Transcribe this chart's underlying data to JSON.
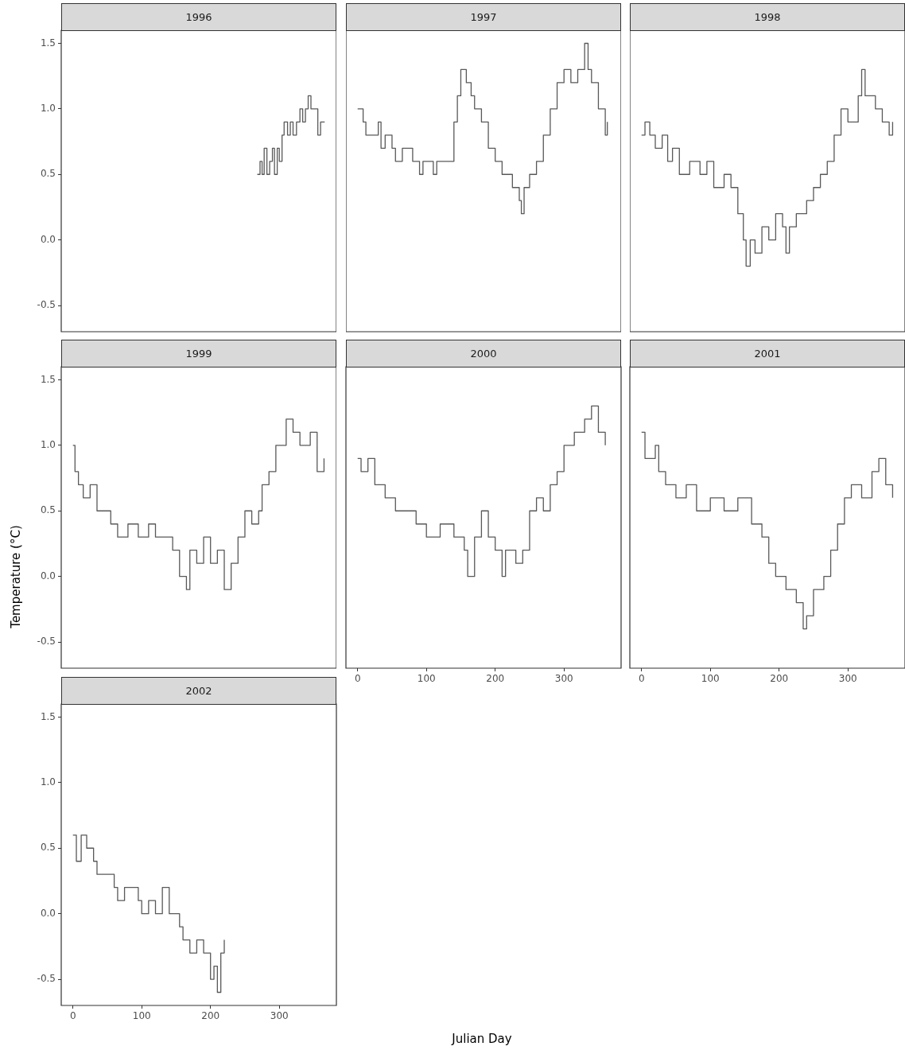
{
  "chart_data": [
    {
      "type": "step",
      "title": "1996",
      "color": "#595959",
      "tick_labels": "y",
      "xlim": [
        -17,
        383
      ],
      "ylim": [
        -0.7,
        1.6
      ],
      "yticks": [
        {
          "value": -0.5,
          "label": "-0.5"
        },
        {
          "value": 0,
          "label": "0.0"
        },
        {
          "value": 0.5,
          "label": "0.5"
        },
        {
          "value": 1,
          "label": "1.0"
        },
        {
          "value": 1.5,
          "label": "1.5"
        }
      ],
      "x": [
        268,
        272,
        275,
        278,
        282,
        286,
        290,
        293,
        297,
        300,
        304,
        307,
        312,
        316,
        320,
        325,
        330,
        334,
        338,
        342,
        346,
        352,
        356,
        360,
        366
      ],
      "values": [
        0.5,
        0.6,
        0.5,
        0.7,
        0.5,
        0.6,
        0.7,
        0.5,
        0.7,
        0.6,
        0.8,
        0.9,
        0.8,
        0.9,
        0.8,
        0.9,
        1.0,
        0.9,
        1.0,
        1.1,
        1.0,
        1.0,
        0.8,
        0.9,
        0.9
      ]
    },
    {
      "type": "step",
      "title": "1997",
      "color": "#595959",
      "tick_labels": false,
      "xlim": [
        -17,
        383
      ],
      "ylim": [
        -0.7,
        1.6
      ],
      "x": [
        0,
        8,
        12,
        30,
        34,
        40,
        50,
        55,
        65,
        75,
        80,
        90,
        95,
        110,
        115,
        125,
        140,
        145,
        150,
        158,
        165,
        170,
        180,
        190,
        200,
        210,
        225,
        235,
        238,
        242,
        250,
        260,
        270,
        280,
        290,
        300,
        310,
        320,
        330,
        335,
        340,
        350,
        360,
        363
      ],
      "values": [
        1.0,
        0.9,
        0.8,
        0.9,
        0.7,
        0.8,
        0.7,
        0.6,
        0.7,
        0.7,
        0.6,
        0.5,
        0.6,
        0.5,
        0.6,
        0.6,
        0.9,
        1.1,
        1.3,
        1.2,
        1.1,
        1.0,
        0.9,
        0.7,
        0.6,
        0.5,
        0.4,
        0.3,
        0.2,
        0.4,
        0.5,
        0.6,
        0.8,
        1.0,
        1.2,
        1.3,
        1.2,
        1.3,
        1.5,
        1.3,
        1.2,
        1.0,
        0.8,
        0.9
      ]
    },
    {
      "type": "step",
      "title": "1998",
      "color": "#595959",
      "tick_labels": false,
      "xlim": [
        -17,
        383
      ],
      "ylim": [
        -0.7,
        1.6
      ],
      "x": [
        0,
        5,
        12,
        20,
        30,
        38,
        45,
        55,
        70,
        85,
        95,
        105,
        120,
        130,
        140,
        148,
        152,
        158,
        165,
        175,
        185,
        195,
        205,
        210,
        215,
        225,
        240,
        250,
        260,
        270,
        280,
        290,
        300,
        315,
        320,
        325,
        340,
        350,
        360,
        365
      ],
      "values": [
        0.8,
        0.9,
        0.8,
        0.7,
        0.8,
        0.6,
        0.7,
        0.5,
        0.6,
        0.5,
        0.6,
        0.4,
        0.5,
        0.4,
        0.2,
        0.0,
        -0.2,
        0.0,
        -0.1,
        0.1,
        0.0,
        0.2,
        0.1,
        -0.1,
        0.1,
        0.2,
        0.3,
        0.4,
        0.5,
        0.6,
        0.8,
        1.0,
        0.9,
        1.1,
        1.3,
        1.1,
        1.0,
        0.9,
        0.8,
        0.9
      ]
    },
    {
      "type": "step",
      "title": "1999",
      "ylabel": "Temperature (°C)",
      "color": "#595959",
      "tick_labels": "y",
      "xlim": [
        -17,
        383
      ],
      "ylim": [
        -0.7,
        1.6
      ],
      "yticks": [
        {
          "value": -0.5,
          "label": "-0.5"
        },
        {
          "value": 0,
          "label": "0.0"
        },
        {
          "value": 0.5,
          "label": "0.5"
        },
        {
          "value": 1,
          "label": "1.0"
        },
        {
          "value": 1.5,
          "label": "1.5"
        }
      ],
      "x": [
        0,
        3,
        8,
        15,
        25,
        35,
        55,
        65,
        80,
        95,
        110,
        120,
        145,
        155,
        165,
        170,
        180,
        190,
        200,
        210,
        220,
        230,
        240,
        250,
        260,
        270,
        275,
        285,
        295,
        310,
        320,
        330,
        345,
        355,
        365
      ],
      "values": [
        1.0,
        0.8,
        0.7,
        0.6,
        0.7,
        0.5,
        0.4,
        0.3,
        0.4,
        0.3,
        0.4,
        0.3,
        0.2,
        0.0,
        -0.1,
        0.2,
        0.1,
        0.3,
        0.1,
        0.2,
        -0.1,
        0.1,
        0.3,
        0.5,
        0.4,
        0.5,
        0.7,
        0.8,
        1.0,
        1.2,
        1.1,
        1.0,
        1.1,
        0.8,
        0.9
      ]
    },
    {
      "type": "step",
      "title": "2000",
      "xlabel": "Julian Day",
      "color": "#595959",
      "tick_labels": "x",
      "xlim": [
        -17,
        383
      ],
      "ylim": [
        -0.7,
        1.6
      ],
      "xticks": [
        0,
        100,
        200,
        300
      ],
      "x": [
        0,
        5,
        15,
        25,
        40,
        55,
        70,
        85,
        100,
        120,
        140,
        155,
        160,
        170,
        180,
        190,
        200,
        210,
        215,
        230,
        240,
        250,
        260,
        270,
        280,
        290,
        300,
        315,
        330,
        340,
        350,
        360
      ],
      "values": [
        0.9,
        0.8,
        0.9,
        0.7,
        0.6,
        0.5,
        0.5,
        0.4,
        0.3,
        0.4,
        0.3,
        0.2,
        0.0,
        0.3,
        0.5,
        0.3,
        0.2,
        0.0,
        0.2,
        0.1,
        0.2,
        0.5,
        0.6,
        0.5,
        0.7,
        0.8,
        1.0,
        1.1,
        1.2,
        1.3,
        1.1,
        1.0
      ]
    },
    {
      "type": "step",
      "title": "2001",
      "color": "#595959",
      "tick_labels": "x",
      "xlim": [
        -17,
        383
      ],
      "ylim": [
        -0.7,
        1.6
      ],
      "xticks": [
        0,
        100,
        200,
        300
      ],
      "x": [
        0,
        5,
        20,
        25,
        35,
        50,
        65,
        80,
        100,
        120,
        140,
        160,
        175,
        185,
        195,
        210,
        225,
        235,
        240,
        250,
        265,
        275,
        285,
        295,
        305,
        320,
        335,
        345,
        355,
        365
      ],
      "values": [
        1.1,
        0.9,
        1.0,
        0.8,
        0.7,
        0.6,
        0.7,
        0.5,
        0.6,
        0.5,
        0.6,
        0.4,
        0.3,
        0.1,
        0.0,
        -0.1,
        -0.2,
        -0.4,
        -0.3,
        -0.1,
        0.0,
        0.2,
        0.4,
        0.6,
        0.7,
        0.6,
        0.8,
        0.9,
        0.7,
        0.6
      ]
    },
    {
      "type": "step",
      "title": "2002",
      "color": "#595959",
      "xlim": [
        -17,
        383
      ],
      "ylim": [
        -0.7,
        1.6
      ],
      "xticks": [
        0,
        100,
        200,
        300
      ],
      "yticks": [
        {
          "value": -0.5,
          "label": "-0.5"
        },
        {
          "value": 0,
          "label": "0.0"
        },
        {
          "value": 0.5,
          "label": "0.5"
        },
        {
          "value": 1,
          "label": "1.0"
        },
        {
          "value": 1.5,
          "label": "1.5"
        }
      ],
      "x": [
        0,
        5,
        12,
        20,
        30,
        35,
        50,
        60,
        65,
        75,
        95,
        100,
        110,
        120,
        130,
        140,
        155,
        160,
        170,
        180,
        190,
        200,
        205,
        210,
        215,
        220
      ],
      "values": [
        0.6,
        0.4,
        0.6,
        0.5,
        0.4,
        0.3,
        0.3,
        0.2,
        0.1,
        0.2,
        0.1,
        0.0,
        0.1,
        0.0,
        0.2,
        0.0,
        -0.1,
        -0.2,
        -0.3,
        -0.2,
        -0.3,
        -0.5,
        -0.4,
        -0.6,
        -0.3,
        -0.2
      ]
    }
  ]
}
